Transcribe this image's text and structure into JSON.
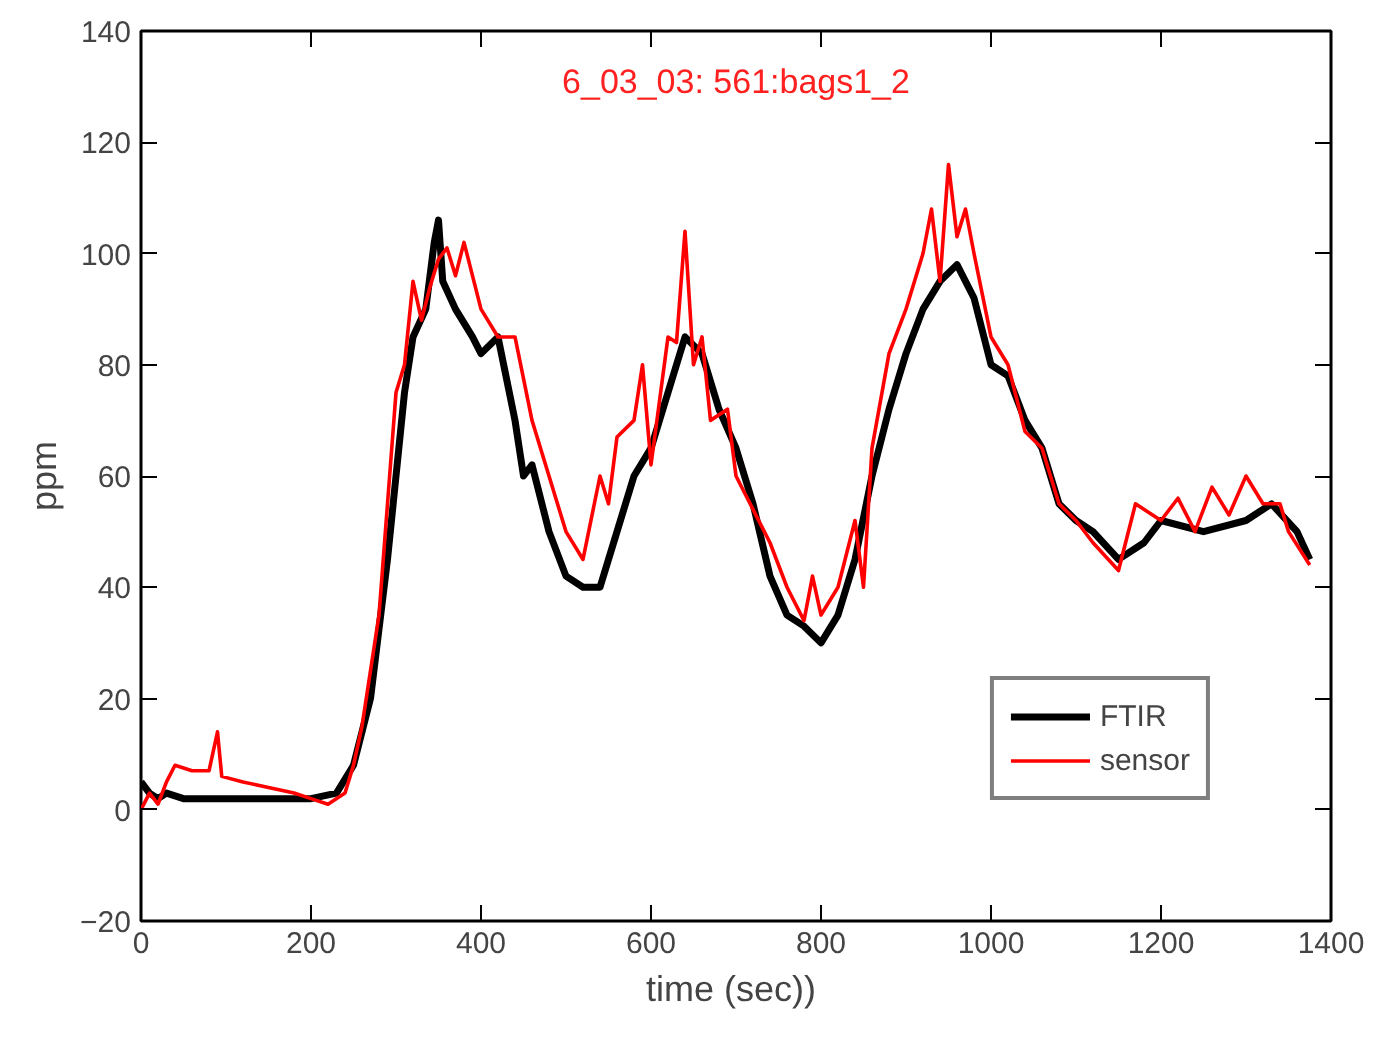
{
  "chart_data": {
    "type": "line",
    "title": "6_03_03: 561:bags1_2",
    "xlabel": "time  (sec))",
    "ylabel": "ppm",
    "xlim": [
      0,
      1400
    ],
    "ylim": [
      -20,
      140
    ],
    "xticks": [
      0,
      200,
      400,
      600,
      800,
      1000,
      1200,
      1400
    ],
    "yticks": [
      -20,
      0,
      20,
      40,
      60,
      80,
      100,
      120,
      140
    ],
    "grid": false,
    "legend": "bottom right",
    "line_style": "solid",
    "marker": "none",
    "series": [
      {
        "name": "FTIR",
        "color": "#000000",
        "x": [
          0,
          10,
          20,
          30,
          50,
          100,
          150,
          200,
          230,
          250,
          270,
          290,
          300,
          310,
          320,
          335,
          345,
          350,
          355,
          370,
          390,
          400,
          420,
          440,
          450,
          460,
          480,
          500,
          520,
          540,
          560,
          580,
          600,
          620,
          640,
          660,
          680,
          700,
          720,
          740,
          760,
          780,
          800,
          820,
          840,
          860,
          880,
          900,
          920,
          940,
          960,
          980,
          1000,
          1020,
          1040,
          1060,
          1080,
          1100,
          1120,
          1150,
          1180,
          1200,
          1250,
          1300,
          1330,
          1360,
          1375
        ],
        "values": [
          5,
          3,
          2,
          3,
          2,
          2,
          2,
          2,
          3,
          8,
          20,
          45,
          60,
          75,
          85,
          90,
          102,
          106,
          95,
          90,
          85,
          82,
          85,
          70,
          60,
          62,
          50,
          42,
          40,
          40,
          50,
          60,
          65,
          75,
          85,
          82,
          72,
          65,
          55,
          42,
          35,
          33,
          30,
          35,
          45,
          60,
          72,
          82,
          90,
          95,
          98,
          92,
          80,
          78,
          70,
          65,
          55,
          52,
          50,
          45,
          48,
          52,
          50,
          52,
          55,
          50,
          45
        ]
      },
      {
        "name": "sensor",
        "color": "#ff0000",
        "x": [
          0,
          10,
          20,
          30,
          40,
          60,
          80,
          90,
          95,
          120,
          150,
          180,
          200,
          220,
          240,
          250,
          260,
          280,
          290,
          300,
          310,
          320,
          330,
          340,
          350,
          360,
          370,
          380,
          400,
          420,
          440,
          460,
          480,
          500,
          520,
          540,
          550,
          560,
          580,
          590,
          600,
          620,
          630,
          640,
          650,
          660,
          670,
          690,
          700,
          720,
          740,
          760,
          780,
          790,
          800,
          820,
          840,
          850,
          860,
          880,
          900,
          920,
          930,
          940,
          950,
          960,
          970,
          980,
          1000,
          1020,
          1040,
          1060,
          1080,
          1100,
          1120,
          1150,
          1170,
          1200,
          1220,
          1240,
          1260,
          1280,
          1300,
          1320,
          1340,
          1350,
          1375
        ],
        "values": [
          0,
          3,
          1,
          5,
          8,
          7,
          7,
          14,
          6,
          5,
          4,
          3,
          2,
          1,
          3,
          8,
          15,
          35,
          55,
          75,
          80,
          95,
          88,
          94,
          99,
          101,
          96,
          102,
          90,
          85,
          85,
          70,
          60,
          50,
          45,
          60,
          55,
          67,
          70,
          80,
          62,
          85,
          84,
          104,
          80,
          85,
          70,
          72,
          60,
          54,
          48,
          40,
          34,
          42,
          35,
          40,
          52,
          40,
          65,
          82,
          90,
          100,
          108,
          95,
          116,
          103,
          108,
          100,
          85,
          80,
          68,
          65,
          55,
          52,
          48,
          43,
          55,
          52,
          56,
          50,
          58,
          53,
          60,
          55,
          55,
          50,
          44
        ]
      }
    ]
  }
}
